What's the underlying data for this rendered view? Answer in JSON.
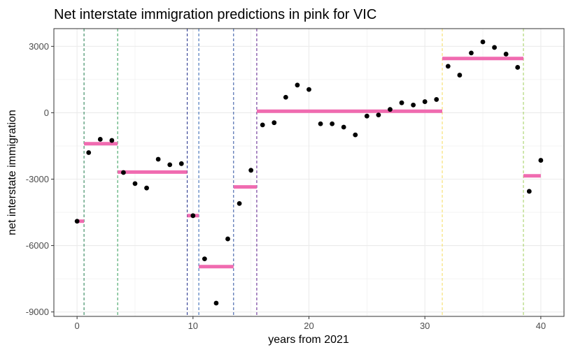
{
  "chart_data": {
    "type": "scatter",
    "title": "Net interstate immigration predictions in pink for VIC",
    "xlabel": "years from 2021",
    "ylabel": "net interstate immigration",
    "xlim": [
      -2,
      42
    ],
    "ylim": [
      -9200,
      3800
    ],
    "x_ticks": [
      0,
      10,
      20,
      30,
      40
    ],
    "x_tick_labels": [
      "0",
      "10",
      "20",
      "30",
      "40"
    ],
    "y_ticks": [
      3000,
      0,
      -3000,
      -6000,
      -9000
    ],
    "y_tick_labels": [
      "3000",
      "0",
      "-3000",
      "-6000",
      "-9000"
    ],
    "grid": true,
    "points": {
      "color": "#000000",
      "x": [
        0,
        1,
        2,
        3,
        4,
        5,
        6,
        7,
        8,
        9,
        10,
        11,
        12,
        13,
        14,
        15,
        16,
        17,
        18,
        19,
        20,
        21,
        22,
        23,
        24,
        25,
        26,
        27,
        28,
        29,
        30,
        31,
        32,
        33,
        34,
        35,
        36,
        37,
        38,
        39,
        40
      ],
      "y": [
        -4900,
        -1800,
        -1200,
        -1250,
        -2700,
        -3200,
        -3400,
        -2100,
        -2350,
        -2300,
        -4650,
        -6600,
        -8600,
        -5700,
        -4100,
        -2600,
        -550,
        -450,
        700,
        1250,
        1050,
        -500,
        -500,
        -650,
        -1000,
        -150,
        -100,
        150,
        450,
        350,
        500,
        600,
        2100,
        1700,
        2700,
        3200,
        2950,
        2650,
        2050,
        -3550,
        -2150
      ]
    },
    "predictions": {
      "color": "#f06bb0",
      "segments": [
        {
          "x_start": -0.1,
          "x_end": 0.6,
          "y": -4900
        },
        {
          "x_start": 0.6,
          "x_end": 3.5,
          "y": -1400
        },
        {
          "x_start": 3.5,
          "x_end": 9.5,
          "y": -2680
        },
        {
          "x_start": 9.5,
          "x_end": 10.5,
          "y": -4650
        },
        {
          "x_start": 10.5,
          "x_end": 13.5,
          "y": -6950
        },
        {
          "x_start": 13.5,
          "x_end": 15.5,
          "y": -3350
        },
        {
          "x_start": 15.5,
          "x_end": 31.5,
          "y": 70
        },
        {
          "x_start": 31.5,
          "x_end": 38.5,
          "y": 2450
        },
        {
          "x_start": 38.5,
          "x_end": 40.0,
          "y": -2850
        }
      ]
    },
    "changepoints": [
      {
        "x": 0.6,
        "color": "#1b7a4a"
      },
      {
        "x": 3.5,
        "color": "#2f9a55"
      },
      {
        "x": 9.5,
        "color": "#1f2d8a"
      },
      {
        "x": 10.5,
        "color": "#2b5fb0"
      },
      {
        "x": 13.5,
        "color": "#2a4f9e"
      },
      {
        "x": 15.5,
        "color": "#5a1a8a"
      },
      {
        "x": 31.5,
        "color": "#f5dc5a"
      },
      {
        "x": 38.5,
        "color": "#9fcf5a"
      }
    ],
    "colors": {
      "background": "#ffffff",
      "grid": "#ebebeb",
      "panel_border": "#333333"
    }
  }
}
